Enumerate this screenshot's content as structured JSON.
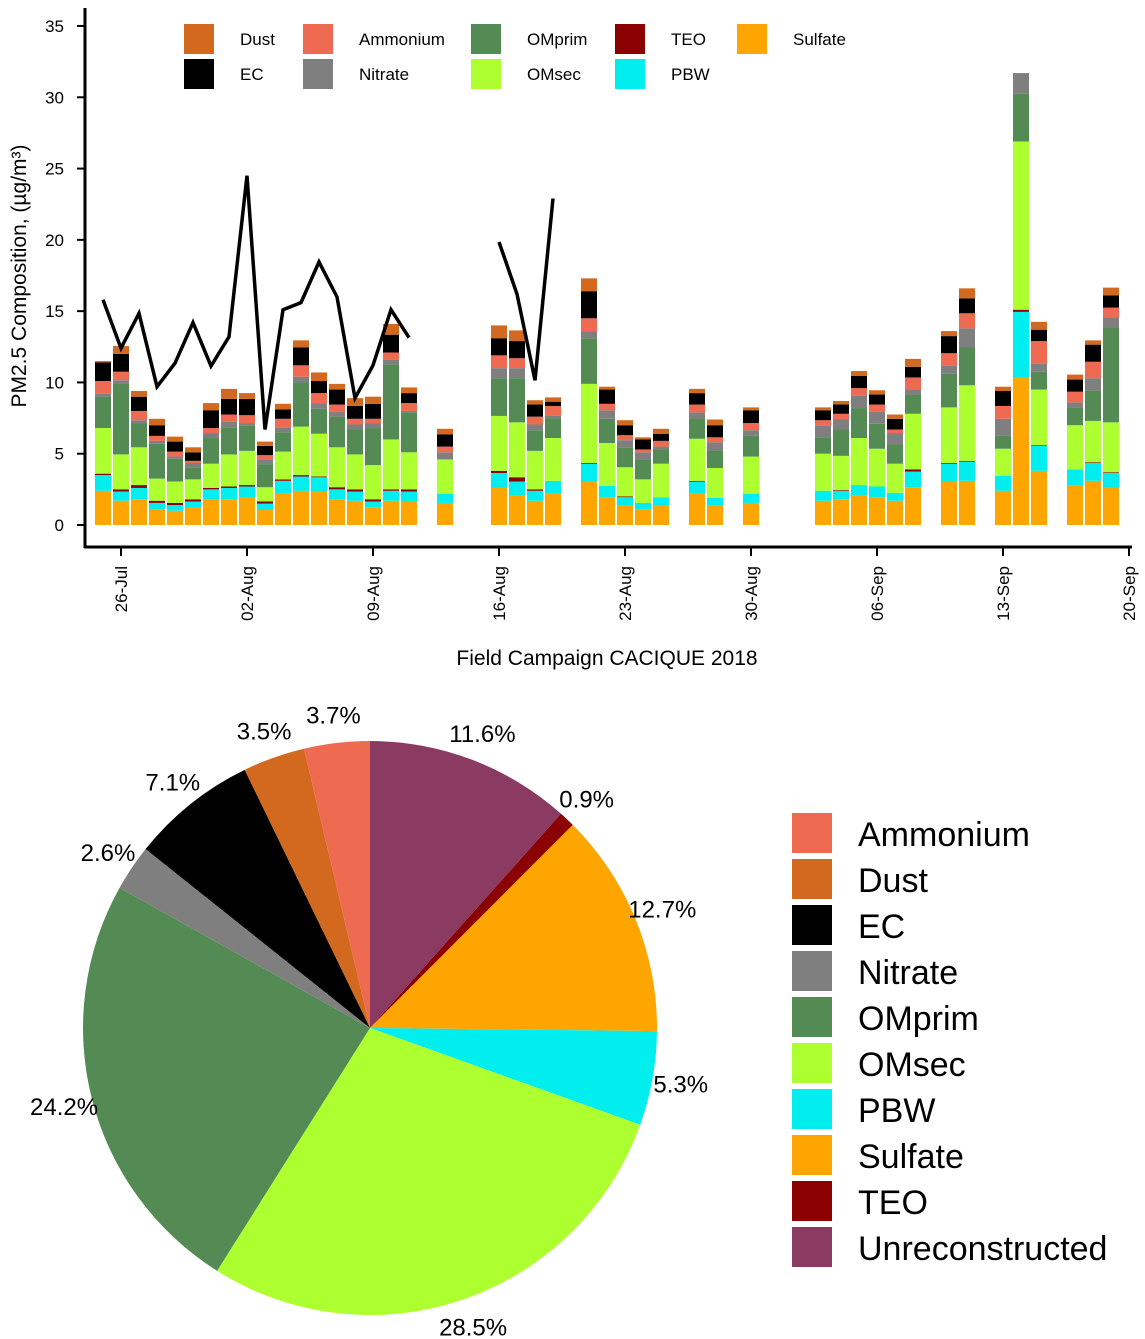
{
  "chart_data": [
    {
      "type": "bar",
      "stacked": true,
      "xlabel": "Field Campaign CACIQUE 2018",
      "ylabel": "PM2.5 Composition, (µg/m³)",
      "ylim": [
        0,
        35
      ],
      "yticks": [
        0,
        5,
        10,
        15,
        20,
        25,
        30,
        35
      ],
      "xticks": [
        "26-Jul",
        "02-Aug",
        "09-Aug",
        "16-Aug",
        "23-Aug",
        "30-Aug",
        "06-Sep",
        "13-Sep",
        "20-Sep"
      ],
      "grid": false,
      "legend_placement": "top",
      "legend_order": [
        "Dust",
        "Ammonium",
        "OMprim",
        "TEO",
        "Sulfate",
        "EC",
        "Nitrate",
        "OMsec",
        "PBW"
      ],
      "categories": [
        "25-Jul",
        "26-Jul",
        "27-Jul",
        "28-Jul",
        "29-Jul",
        "30-Jul",
        "31-Jul",
        "01-Aug",
        "02-Aug",
        "03-Aug",
        "04-Aug",
        "05-Aug",
        "06-Aug",
        "07-Aug",
        "08-Aug",
        "09-Aug",
        "10-Aug",
        "11-Aug",
        "13-Aug",
        "16-Aug",
        "17-Aug",
        "18-Aug",
        "19-Aug",
        "21-Aug",
        "22-Aug",
        "23-Aug",
        "24-Aug",
        "25-Aug",
        "27-Aug",
        "28-Aug",
        "30-Aug",
        "03-Sep",
        "04-Sep",
        "05-Sep",
        "06-Sep",
        "07-Sep",
        "08-Sep",
        "10-Sep",
        "11-Sep",
        "13-Sep",
        "14-Sep",
        "15-Sep",
        "17-Sep",
        "18-Sep",
        "19-Sep"
      ],
      "series": [
        {
          "name": "Sulfate",
          "color": "#FFA500",
          "values": [
            2.4,
            1.7,
            1.8,
            1.1,
            1.0,
            1.2,
            1.8,
            1.8,
            1.9,
            1.05,
            2.2,
            2.4,
            2.35,
            1.8,
            1.7,
            1.25,
            1.7,
            1.65,
            1.55,
            2.6,
            2.1,
            1.7,
            2.2,
            3.05,
            1.95,
            1.4,
            1.1,
            1.4,
            2.2,
            1.35,
            1.55,
            1.7,
            1.8,
            2.05,
            1.95,
            1.7,
            2.65,
            3.05,
            3.1,
            2.4,
            10.35,
            3.8,
            2.75,
            3.1,
            2.6
          ]
        },
        {
          "name": "PBW",
          "color": "#00EEEE",
          "values": [
            1.1,
            0.65,
            0.8,
            0.45,
            0.4,
            0.45,
            0.7,
            0.8,
            0.8,
            0.45,
            0.9,
            1.0,
            1.0,
            0.7,
            0.65,
            0.4,
            0.7,
            0.7,
            0.65,
            1.05,
            0.95,
            0.7,
            0.9,
            1.25,
            0.8,
            0.55,
            0.45,
            0.55,
            0.85,
            0.55,
            0.65,
            0.7,
            0.6,
            0.75,
            0.75,
            0.55,
            1.1,
            1.25,
            1.35,
            1.05,
            4.6,
            1.75,
            1.15,
            1.25,
            1.05
          ]
        },
        {
          "name": "TEO",
          "color": "#8B0000",
          "values": [
            0.1,
            0.15,
            0.2,
            0.15,
            0.15,
            0.15,
            0.1,
            0.1,
            0.1,
            0.15,
            0.1,
            0.1,
            0.05,
            0.15,
            0.15,
            0.15,
            0.1,
            0.15,
            0,
            0.15,
            0.3,
            0.1,
            0,
            0.05,
            0,
            0.05,
            0,
            0,
            0.05,
            0,
            0,
            0,
            0.05,
            0,
            0,
            0,
            0.15,
            0.05,
            0.05,
            0,
            0.15,
            0.05,
            0,
            0.05,
            0.05
          ]
        },
        {
          "name": "OMsec",
          "color": "#ADFF2F",
          "values": [
            3.2,
            2.45,
            2.65,
            1.55,
            1.5,
            1.4,
            1.7,
            2.25,
            2.4,
            1.0,
            1.95,
            3.4,
            3.0,
            2.8,
            2.45,
            2.4,
            3.5,
            2.6,
            2.4,
            3.85,
            3.85,
            2.7,
            3.0,
            5.55,
            3.0,
            2.05,
            1.65,
            2.35,
            2.95,
            2.1,
            2.6,
            2.6,
            2.4,
            3.3,
            2.65,
            2.05,
            3.9,
            3.9,
            5.3,
            1.9,
            11.8,
            3.9,
            3.1,
            2.9,
            3.5
          ]
        },
        {
          "name": "OMprim",
          "color": "#548B54",
          "values": [
            2.2,
            5.0,
            1.7,
            2.45,
            1.6,
            0.85,
            1.8,
            1.9,
            1.75,
            1.6,
            1.35,
            3.1,
            1.75,
            2.15,
            1.75,
            2.6,
            5.25,
            2.8,
            0,
            2.65,
            3.1,
            1.45,
            1.4,
            3.2,
            1.7,
            1.4,
            1.4,
            1.0,
            1.45,
            1.25,
            1.45,
            1.15,
            1.85,
            2.1,
            1.75,
            1.35,
            1.35,
            2.35,
            2.65,
            0.9,
            3.35,
            1.25,
            1.25,
            2.15,
            6.65
          ]
        },
        {
          "name": "Nitrate",
          "color": "#7F7F7F",
          "values": [
            0.2,
            0.2,
            0.2,
            0.2,
            0.15,
            0.3,
            0.35,
            0.4,
            0.2,
            0.35,
            0.35,
            0.4,
            0.4,
            0.35,
            0.35,
            0.35,
            0.35,
            0.1,
            0.5,
            0.7,
            0.7,
            0.4,
            0.15,
            0.5,
            0.6,
            0.5,
            0.5,
            0.2,
            0.4,
            0.55,
            0.4,
            0.8,
            0.7,
            0.9,
            0.85,
            0.8,
            0.35,
            0.6,
            1.35,
            1.2,
            1.45,
            0.55,
            0.35,
            0.85,
            0.7
          ]
        },
        {
          "name": "Ammonium",
          "color": "#EE6A50",
          "values": [
            0.9,
            0.6,
            0.65,
            0.35,
            0.35,
            0.15,
            0.35,
            0.5,
            0.55,
            0.3,
            0.6,
            0.8,
            0.7,
            0.5,
            0.4,
            0.3,
            0.5,
            0.55,
            0.4,
            0.9,
            0.7,
            0.55,
            0.7,
            0.9,
            0.45,
            0.35,
            0.2,
            0.4,
            0.55,
            0.35,
            0.5,
            0.4,
            0.4,
            0.5,
            0.5,
            0.25,
            0.85,
            0.85,
            1.05,
            0.9,
            0,
            1.6,
            0.75,
            1.15,
            0.7
          ]
        },
        {
          "name": "EC",
          "color": "#000000",
          "values": [
            1.3,
            1.25,
            1.0,
            0.75,
            0.7,
            0.6,
            1.25,
            1.1,
            1.15,
            0.65,
            0.65,
            1.25,
            0.85,
            1.05,
            0.9,
            1.05,
            1.25,
            0.7,
            0.85,
            1.2,
            1.2,
            0.85,
            0.3,
            1.9,
            1.0,
            0.7,
            0.7,
            0.5,
            0.8,
            0.85,
            0.9,
            0.7,
            0.65,
            0.85,
            0.7,
            0.75,
            0.75,
            1.2,
            1.05,
            1.05,
            0,
            0.8,
            0.85,
            1.2,
            0.85
          ]
        },
        {
          "name": "Dust",
          "color": "#D2691E",
          "values": [
            0.1,
            0.55,
            0.4,
            0.45,
            0.35,
            0.35,
            0.5,
            0.7,
            0.4,
            0.3,
            0.4,
            0.5,
            0.6,
            0.4,
            0.55,
            0.5,
            0.75,
            0.4,
            0.4,
            0.9,
            0.75,
            0.3,
            0.3,
            0.9,
            0.2,
            0.35,
            0.15,
            0.35,
            0.3,
            0.4,
            0.2,
            0.2,
            0.25,
            0.35,
            0.3,
            0.3,
            0.55,
            0.35,
            0.7,
            0.3,
            0,
            0.55,
            0.35,
            0.3,
            0.55
          ]
        }
      ],
      "line": {
        "color": "#000000",
        "segments": [
          {
            "x": [
              "25-Jul",
              "26-Jul",
              "27-Jul",
              "28-Jul",
              "29-Jul",
              "30-Jul",
              "31-Jul",
              "01-Aug",
              "02-Aug",
              "03-Aug",
              "04-Aug",
              "05-Aug",
              "06-Aug",
              "07-Aug",
              "08-Aug",
              "09-Aug",
              "10-Aug",
              "11-Aug"
            ],
            "y": [
              15.8,
              12.4,
              14.85,
              9.7,
              11.35,
              14.2,
              11.15,
              13.2,
              24.5,
              6.7,
              15.1,
              15.6,
              18.45,
              16.0,
              8.9,
              11.2,
              15.1,
              13.15
            ]
          },
          {
            "x": [
              "16-Aug",
              "17-Aug",
              "18-Aug",
              "19-Aug"
            ],
            "y": [
              19.85,
              16.2,
              10.15,
              22.9
            ]
          }
        ]
      }
    },
    {
      "type": "pie",
      "slices": [
        {
          "name": "Unreconstructed",
          "value": 11.6,
          "label": "11.6%",
          "color": "#8B3A62"
        },
        {
          "name": "TEO",
          "value": 0.9,
          "label": "0.9%",
          "color": "#8B0000"
        },
        {
          "name": "Sulfate",
          "value": 12.7,
          "label": "12.7%",
          "color": "#FFA500"
        },
        {
          "name": "PBW",
          "value": 5.3,
          "label": "5.3%",
          "color": "#00EEEE"
        },
        {
          "name": "OMsec",
          "value": 28.5,
          "label": "28.5%",
          "color": "#ADFF2F"
        },
        {
          "name": "OMprim",
          "value": 24.2,
          "label": "24.2%",
          "color": "#548B54"
        },
        {
          "name": "Nitrate",
          "value": 2.6,
          "label": "2.6%",
          "color": "#7F7F7F"
        },
        {
          "name": "EC",
          "value": 7.1,
          "label": "7.1%",
          "color": "#000000"
        },
        {
          "name": "Dust",
          "value": 3.5,
          "label": "3.5%",
          "color": "#D2691E"
        },
        {
          "name": "Ammonium",
          "value": 3.7,
          "label": "3.7%",
          "color": "#EE6A50"
        }
      ],
      "legend_placement": "right",
      "legend": [
        "Ammonium",
        "Dust",
        "EC",
        "Nitrate",
        "OMprim",
        "OMsec",
        "PBW",
        "Sulfate",
        "TEO",
        "Unreconstructed"
      ]
    }
  ]
}
